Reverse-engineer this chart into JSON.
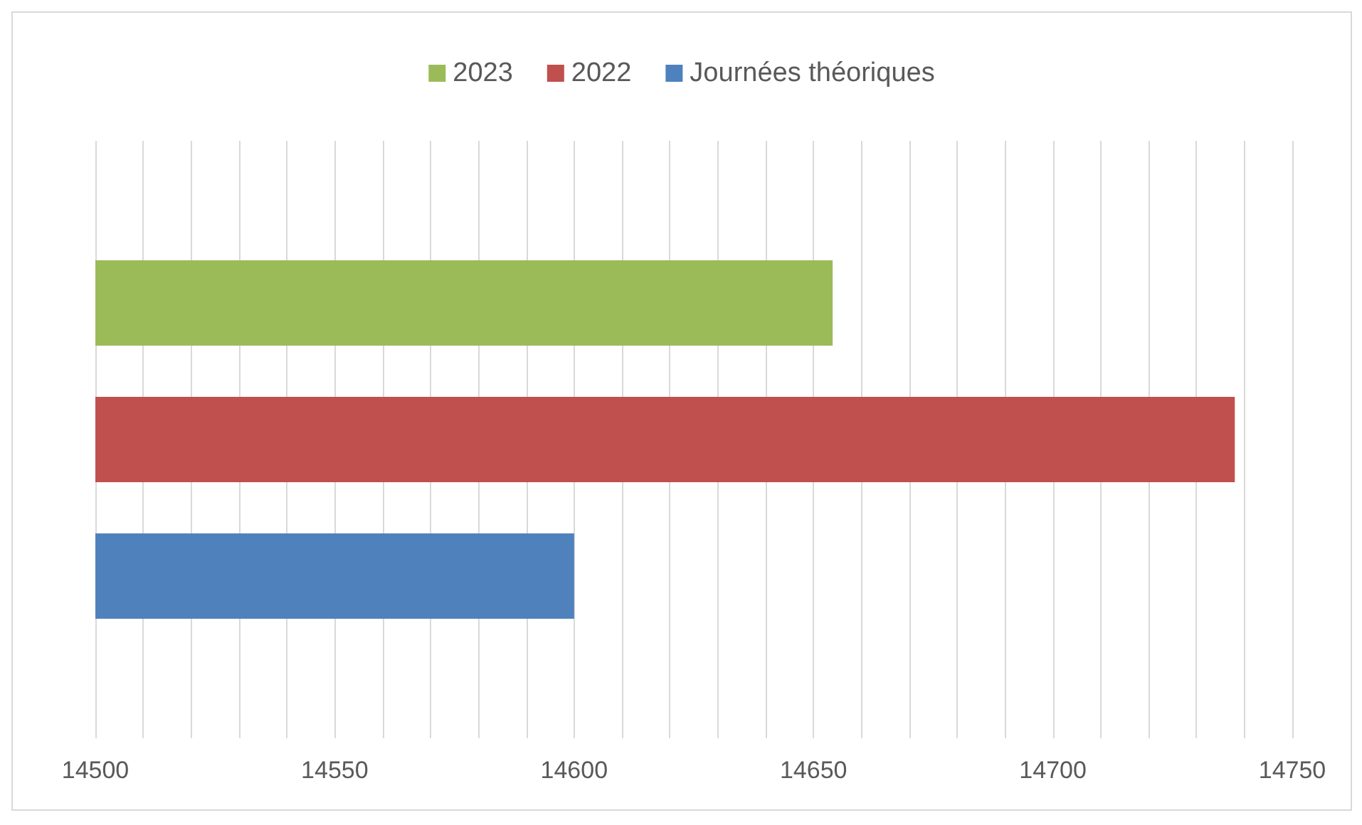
{
  "chart_data": {
    "type": "bar",
    "orientation": "horizontal",
    "categories": [
      null
    ],
    "series": [
      {
        "name": "2023",
        "color": "#9bbb59",
        "values": [
          14654
        ]
      },
      {
        "name": "2022",
        "color": "#c0504d",
        "values": [
          14738
        ]
      },
      {
        "name": "Journées théoriques",
        "color": "#4f81bd",
        "values": [
          14600
        ]
      }
    ],
    "xlim": [
      14500,
      14750
    ],
    "xticks": [
      14500,
      {
        "value": 14510,
        "label": null
      },
      {
        "value": 14520,
        "label": null
      },
      {
        "value": 14530,
        "label": null
      },
      {
        "value": 14540,
        "label": null
      },
      14550,
      {
        "value": 14560,
        "label": null
      },
      {
        "value": 14570,
        "label": null
      },
      {
        "value": 14580,
        "label": null
      },
      {
        "value": 14590,
        "label": null
      },
      14600,
      {
        "value": 14610,
        "label": null
      },
      {
        "value": 14620,
        "label": null
      },
      {
        "value": 14630,
        "label": null
      },
      {
        "value": 14640,
        "label": null
      },
      14650,
      {
        "value": 14660,
        "label": null
      },
      {
        "value": 14670,
        "label": null
      },
      {
        "value": 14680,
        "label": null
      },
      {
        "value": 14690,
        "label": null
      },
      14700,
      {
        "value": 14710,
        "label": null
      },
      {
        "value": 14720,
        "label": null
      },
      {
        "value": 14730,
        "label": null
      },
      {
        "value": 14740,
        "label": null
      },
      14750
    ],
    "grid": "x",
    "legend": "top"
  }
}
